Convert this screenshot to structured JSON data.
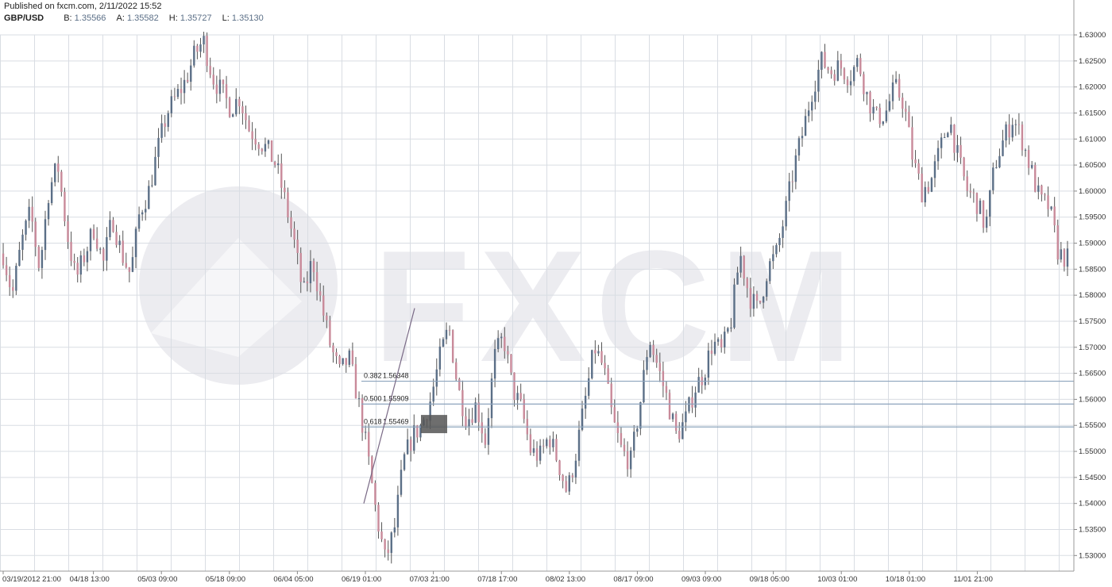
{
  "header": {
    "published": "Published on fxcm.com, 2/11/2022 15:52",
    "symbol": "GBP/USD",
    "bid_label": "B:",
    "bid": "1.35566",
    "ask_label": "A:",
    "ask": "1.35582",
    "high_label": "H:",
    "high": "1.35727",
    "low_label": "L:",
    "low": "1.35130"
  },
  "watermark": "FXCM",
  "colors": {
    "grid": "#d9dde3",
    "candle_up": "#5b6f87",
    "candle_down": "#c98a9a",
    "wick": "#555555",
    "fib_line": "#8da4bd",
    "fib_box": "#555555",
    "trendline": "#7a6a86",
    "watermark": "#ececf0"
  },
  "chart_data": {
    "type": "candlestick",
    "instrument": "GBP/USD",
    "ylim": [
      1.527,
      1.63
    ],
    "y_ticks": [
      "1.53000",
      "1.53500",
      "1.54000",
      "1.54500",
      "1.55000",
      "1.55500",
      "1.56000",
      "1.56500",
      "1.57000",
      "1.57500",
      "1.58000",
      "1.58500",
      "1.59000",
      "1.59500",
      "1.60000",
      "1.60500",
      "1.61000",
      "1.61500",
      "1.62000",
      "1.62500",
      "1.63000"
    ],
    "x_ticks": [
      "03/19/2012 21:00",
      "04/18 13:00",
      "05/03 09:00",
      "05/18 09:00",
      "06/04 05:00",
      "06/19 01:00",
      "07/03 21:00",
      "07/18 17:00",
      "08/02 13:00",
      "08/17 09:00",
      "09/03 09:00",
      "09/18 05:00",
      "10/03 01:00",
      "10/18 01:00",
      "11/01 21:00"
    ],
    "grid": true,
    "series_close": [
      1.588,
      1.58,
      1.59,
      1.596,
      1.585,
      1.6,
      1.605,
      1.592,
      1.583,
      1.588,
      1.593,
      1.586,
      1.595,
      1.588,
      1.584,
      1.596,
      1.6,
      1.608,
      1.615,
      1.618,
      1.621,
      1.626,
      1.629,
      1.622,
      1.619,
      1.616,
      1.618,
      1.612,
      1.61,
      1.608,
      1.605,
      1.598,
      1.59,
      1.58,
      1.587,
      1.578,
      1.57,
      1.565,
      1.568,
      1.56,
      1.55,
      1.538,
      1.529,
      1.535,
      1.548,
      1.553,
      1.555,
      1.56,
      1.568,
      1.574,
      1.562,
      1.556,
      1.559,
      1.552,
      1.568,
      1.572,
      1.562,
      1.558,
      1.55,
      1.549,
      1.553,
      1.548,
      1.542,
      1.55,
      1.56,
      1.57,
      1.566,
      1.556,
      1.55,
      1.548,
      1.559,
      1.572,
      1.566,
      1.56,
      1.553,
      1.556,
      1.562,
      1.565,
      1.571,
      1.569,
      1.575,
      1.588,
      1.58,
      1.577,
      1.585,
      1.588,
      1.596,
      1.605,
      1.612,
      1.62,
      1.625,
      1.623,
      1.624,
      1.622,
      1.625,
      1.618,
      1.614,
      1.615,
      1.62,
      1.617,
      1.606,
      1.6,
      1.602,
      1.608,
      1.614,
      1.606,
      1.6,
      1.598,
      1.593,
      1.605,
      1.61,
      1.614,
      1.61,
      1.604,
      1.598,
      1.597,
      1.588,
      1.587
    ],
    "fibonacci": [
      {
        "level": "0.382",
        "value": "1.56348"
      },
      {
        "level": "0.500",
        "value": "1.55909"
      },
      {
        "level": "0.618",
        "value": "1.55469"
      }
    ],
    "trendline": {
      "from": {
        "x": "05/31",
        "y": 1.54
      },
      "to": {
        "x": "06/21",
        "y": 1.5775
      }
    }
  }
}
